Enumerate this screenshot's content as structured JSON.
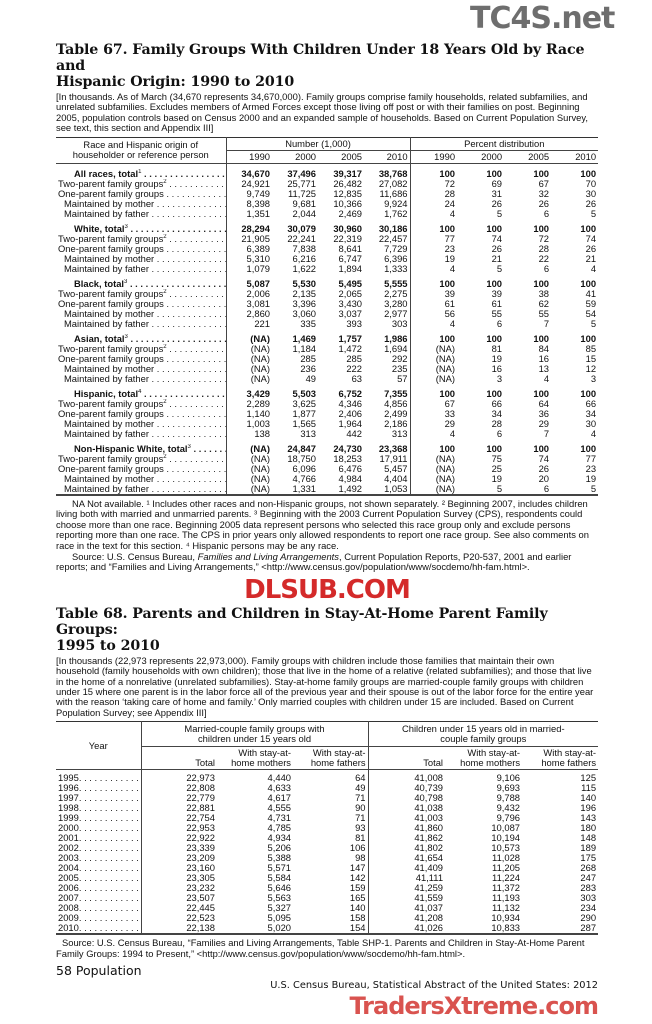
{
  "table67": {
    "title_line1": "Table 67. Family Groups With Children Under 18 Years Old by Race and",
    "title_line2": "Hispanic Origin: 1990 to 2010",
    "headnote": "[In thousands. As of March (34,670 represents 34,670,000). Family groups comprise family households, related subfamilies, and unrelated subfamilies. Excludes members of Armed Forces except those living off post or with their families on post. Beginning 2005, population controls based on Census 2000 and an expanded sample of households. Based on Current Population Survey, see text, this section and Appendix III]",
    "stub_header": "Race and Hispanic origin of householder or reference person",
    "number_header": "Number (1,000)",
    "percent_header": "Percent distribution",
    "years": [
      "1990",
      "2000",
      "2005",
      "2010"
    ],
    "groups": [
      {
        "rows": [
          {
            "label": "All races, total",
            "sup": "1",
            "bold": true,
            "values": [
              "34,670",
              "37,496",
              "39,317",
              "38,768",
              "100",
              "100",
              "100",
              "100"
            ]
          },
          {
            "label": "Two-parent family groups",
            "sup": "2",
            "values": [
              "24,921",
              "25,771",
              "26,482",
              "27,082",
              "72",
              "69",
              "67",
              "70"
            ]
          },
          {
            "label": "One-parent family groups",
            "values": [
              "9,749",
              "11,725",
              "12,835",
              "11,686",
              "28",
              "31",
              "32",
              "30"
            ]
          },
          {
            "label": "Maintained by mother",
            "sub": true,
            "values": [
              "8,398",
              "9,681",
              "10,366",
              "9,924",
              "24",
              "26",
              "26",
              "26"
            ]
          },
          {
            "label": "Maintained by father",
            "sub": true,
            "values": [
              "1,351",
              "2,044",
              "2,469",
              "1,762",
              "4",
              "5",
              "6",
              "5"
            ]
          }
        ]
      },
      {
        "rows": [
          {
            "label": "White, total",
            "sup": "3",
            "bold": true,
            "values": [
              "28,294",
              "30,079",
              "30,960",
              "30,186",
              "100",
              "100",
              "100",
              "100"
            ]
          },
          {
            "label": "Two-parent family groups",
            "sup": "2",
            "values": [
              "21,905",
              "22,241",
              "22,319",
              "22,457",
              "77",
              "74",
              "72",
              "74"
            ]
          },
          {
            "label": "One-parent family groups",
            "values": [
              "6,389",
              "7,838",
              "8,641",
              "7,729",
              "23",
              "26",
              "28",
              "26"
            ]
          },
          {
            "label": "Maintained by mother",
            "sub": true,
            "values": [
              "5,310",
              "6,216",
              "6,747",
              "6,396",
              "19",
              "21",
              "22",
              "21"
            ]
          },
          {
            "label": "Maintained by father",
            "sub": true,
            "values": [
              "1,079",
              "1,622",
              "1,894",
              "1,333",
              "4",
              "5",
              "6",
              "4"
            ]
          }
        ]
      },
      {
        "rows": [
          {
            "label": "Black, total",
            "sup": "3",
            "bold": true,
            "values": [
              "5,087",
              "5,530",
              "5,495",
              "5,555",
              "100",
              "100",
              "100",
              "100"
            ]
          },
          {
            "label": "Two-parent family groups",
            "sup": "2",
            "values": [
              "2,006",
              "2,135",
              "2,065",
              "2,275",
              "39",
              "39",
              "38",
              "41"
            ]
          },
          {
            "label": "One-parent family groups",
            "values": [
              "3,081",
              "3,396",
              "3,430",
              "3,280",
              "61",
              "61",
              "62",
              "59"
            ]
          },
          {
            "label": "Maintained by mother",
            "sub": true,
            "values": [
              "2,860",
              "3,060",
              "3,037",
              "2,977",
              "56",
              "55",
              "55",
              "54"
            ]
          },
          {
            "label": "Maintained by father",
            "sub": true,
            "values": [
              "221",
              "335",
              "393",
              "303",
              "4",
              "6",
              "7",
              "5"
            ]
          }
        ]
      },
      {
        "rows": [
          {
            "label": "Asian, total",
            "sup": "3",
            "bold": true,
            "values": [
              "(NA)",
              "1,469",
              "1,757",
              "1,986",
              "100",
              "100",
              "100",
              "100"
            ]
          },
          {
            "label": "Two-parent family groups",
            "sup": "2",
            "values": [
              "(NA)",
              "1,184",
              "1,472",
              "1,694",
              "(NA)",
              "81",
              "84",
              "85"
            ]
          },
          {
            "label": "One-parent family groups",
            "values": [
              "(NA)",
              "285",
              "285",
              "292",
              "(NA)",
              "19",
              "16",
              "15"
            ]
          },
          {
            "label": "Maintained by mother",
            "sub": true,
            "values": [
              "(NA)",
              "236",
              "222",
              "235",
              "(NA)",
              "16",
              "13",
              "12"
            ]
          },
          {
            "label": "Maintained by father",
            "sub": true,
            "values": [
              "(NA)",
              "49",
              "63",
              "57",
              "(NA)",
              "3",
              "4",
              "3"
            ]
          }
        ]
      },
      {
        "rows": [
          {
            "label": "Hispanic, total",
            "sup": "4",
            "bold": true,
            "values": [
              "3,429",
              "5,503",
              "6,752",
              "7,355",
              "100",
              "100",
              "100",
              "100"
            ]
          },
          {
            "label": "Two-parent family groups",
            "sup": "2",
            "values": [
              "2,289",
              "3,625",
              "4,346",
              "4,856",
              "67",
              "66",
              "64",
              "66"
            ]
          },
          {
            "label": "One-parent family groups",
            "values": [
              "1,140",
              "1,877",
              "2,406",
              "2,499",
              "33",
              "34",
              "36",
              "34"
            ]
          },
          {
            "label": "Maintained by mother",
            "sub": true,
            "values": [
              "1,003",
              "1,565",
              "1,964",
              "2,186",
              "29",
              "28",
              "29",
              "30"
            ]
          },
          {
            "label": "Maintained by father",
            "sub": true,
            "values": [
              "138",
              "313",
              "442",
              "313",
              "4",
              "6",
              "7",
              "4"
            ]
          }
        ]
      },
      {
        "rows": [
          {
            "label": "Non-Hispanic White, total",
            "sup": "3",
            "bold": true,
            "values": [
              "(NA)",
              "24,847",
              "24,730",
              "23,368",
              "100",
              "100",
              "100",
              "100"
            ]
          },
          {
            "label": "Two-parent family groups",
            "sup": "2",
            "values": [
              "(NA)",
              "18,750",
              "18,253",
              "17,911",
              "(NA)",
              "75",
              "74",
              "77"
            ]
          },
          {
            "label": "One-parent family groups",
            "values": [
              "(NA)",
              "6,096",
              "6,476",
              "5,457",
              "(NA)",
              "25",
              "26",
              "23"
            ]
          },
          {
            "label": "Maintained by mother",
            "sub": true,
            "values": [
              "(NA)",
              "4,766",
              "4,984",
              "4,404",
              "(NA)",
              "19",
              "20",
              "19"
            ]
          },
          {
            "label": "Maintained by father",
            "sub": true,
            "values": [
              "(NA)",
              "1,331",
              "1,492",
              "1,053",
              "(NA)",
              "5",
              "6",
              "5"
            ]
          }
        ]
      }
    ],
    "footnotes": "NA Not available. ¹ Includes other races and non-Hispanic groups, not shown separately. ² Beginning 2007, includes children living both with married and unmarried parents. ³ Beginning with the 2003 Current Population Survey (CPS), respondents could choose more than one race. Beginning 2005 data represent persons who selected this race group only and exclude persons reporting more than one race. The CPS in prior years only allowed respondents to report one race group. See also comments on race in the text for this section. ⁴ Hispanic persons may be any race.",
    "source_prefix": "Source: U.S. Census Bureau, ",
    "source_title": "Families and Living Arrangements",
    "source_rest": ", Current Population Reports, P20-537, 2001 and earlier reports; and “Families and Living Arrangements,” <http://www.census.gov/population/www/socdemo/hh-fam.html>."
  },
  "table68": {
    "title_line1": "Table 68. Parents and Children in Stay-At-Home Parent Family Groups:",
    "title_line2": "1995 to 2010",
    "headnote": "[In thousands (22,973 represents 22,973,000). Family groups with children include those families that maintain their own household (family households with own children); those that live in the home of a relative (related subfamilies); and those that live in the home of a nonrelative (unrelated subfamilies). Stay-at-home family groups are married-couple family groups with children under 15 where one parent is in the labor force all of the previous year and their spouse is out of the labor force for the entire year with the reason ‘taking care of home and family.’ Only married couples with children under 15 are included. Based on Current Population Survey; see Appendix III]",
    "year_header": "Year",
    "group1_header": "Married-couple family groups with children under 15 years old",
    "group2_header": "Children under 15 years old in married-couple family groups",
    "col_total": "Total",
    "col_mothers": "With stay-at-home mothers",
    "col_fathers": "With stay-at-home fathers",
    "rows": [
      {
        "year": "1995",
        "values": [
          "22,973",
          "4,440",
          "64",
          "41,008",
          "9,106",
          "125"
        ]
      },
      {
        "year": "1996",
        "values": [
          "22,808",
          "4,633",
          "49",
          "40,739",
          "9,693",
          "115"
        ]
      },
      {
        "year": "1997",
        "values": [
          "22,779",
          "4,617",
          "71",
          "40,798",
          "9,788",
          "140"
        ]
      },
      {
        "year": "1998",
        "values": [
          "22,881",
          "4,555",
          "90",
          "41,038",
          "9,432",
          "196"
        ]
      },
      {
        "year": "1999",
        "values": [
          "22,754",
          "4,731",
          "71",
          "41,003",
          "9,796",
          "143"
        ]
      },
      {
        "year": "2000",
        "values": [
          "22,953",
          "4,785",
          "93",
          "41,860",
          "10,087",
          "180"
        ]
      },
      {
        "year": "2001",
        "values": [
          "22,922",
          "4,934",
          "81",
          "41,862",
          "10,194",
          "148"
        ]
      },
      {
        "year": "2002",
        "values": [
          "23,339",
          "5,206",
          "106",
          "41,802",
          "10,573",
          "189"
        ]
      },
      {
        "year": "2003",
        "values": [
          "23,209",
          "5,388",
          "98",
          "41,654",
          "11,028",
          "175"
        ]
      },
      {
        "year": "2004",
        "values": [
          "23,160",
          "5,571",
          "147",
          "41,409",
          "11,205",
          "268"
        ]
      },
      {
        "year": "2005",
        "values": [
          "23,305",
          "5,584",
          "142",
          "41,111",
          "11,224",
          "247"
        ]
      },
      {
        "year": "2006",
        "values": [
          "23,232",
          "5,646",
          "159",
          "41,259",
          "11,372",
          "283"
        ]
      },
      {
        "year": "2007",
        "values": [
          "23,507",
          "5,563",
          "165",
          "41,559",
          "11,193",
          "303"
        ]
      },
      {
        "year": "2008",
        "values": [
          "22,445",
          "5,327",
          "140",
          "41,037",
          "11,132",
          "234"
        ]
      },
      {
        "year": "2009",
        "values": [
          "22,523",
          "5,095",
          "158",
          "41,208",
          "10,934",
          "290"
        ]
      },
      {
        "year": "2010",
        "values": [
          "22,138",
          "5,020",
          "154",
          "41,026",
          "10,833",
          "287"
        ]
      }
    ],
    "source": "Source:  U.S. Census Bureau, “Families and Living Arrangements, Table SHP-1. Parents and Children in Stay-At-Home Parent Family Groups: 1994 to Present,” <http://www.census.gov/population/www/socdemo/hh-fam.html>."
  },
  "footer": {
    "page_label": "58  Population",
    "publication": "U.S. Census Bureau, Statistical Abstract of the United States: 2012"
  },
  "watermarks": {
    "top_right": "TC4S.net",
    "middle": "DLSUB.COM",
    "bottom": "TradersXtreme.com",
    "middle_color": "#d42a2a",
    "bottom_color": "#d9534f"
  }
}
